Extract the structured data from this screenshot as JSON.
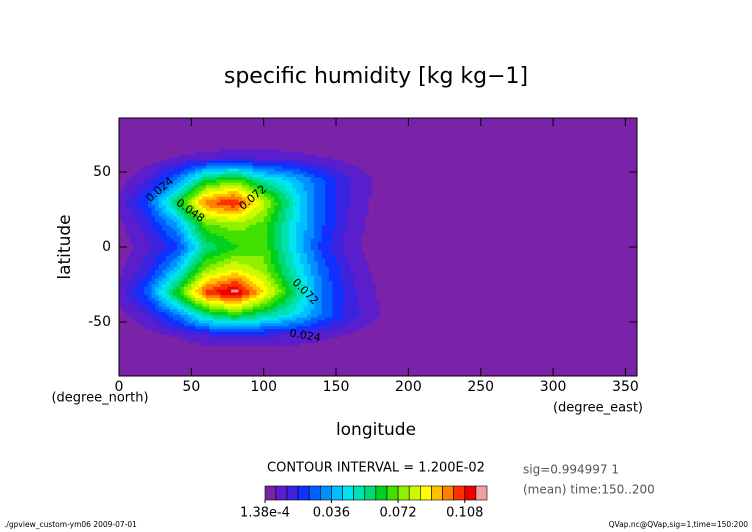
{
  "chart_data": {
    "type": "contour",
    "title": "specific humidity [kg kg−1]",
    "x_label": "longitude",
    "y_label": "latitude",
    "x_unit": "(degree_east)",
    "y_unit": "(degree_north)",
    "contour_interval": "CONTOUR INTERVAL = 1.200E-02",
    "info": [
      "sig=0.994997 1",
      "(mean) time:150..200"
    ],
    "footer_left": "./gpview_custom-ym06  2009-07-01",
    "footer_right": "QVap.nc@QVap,sig=1,time=150:200",
    "xlim": [
      0,
      358
    ],
    "ylim": [
      -86,
      86
    ],
    "xticks": [
      0,
      50,
      100,
      150,
      200,
      250,
      300,
      350
    ],
    "yticks": [
      -50,
      0,
      50
    ],
    "x": [
      0,
      20,
      40,
      60,
      80,
      100,
      120,
      140,
      160,
      180,
      200,
      220,
      240,
      260,
      280,
      300,
      320,
      340,
      360
    ],
    "y": [
      -90,
      -75,
      -60,
      -45,
      -30,
      -15,
      0,
      15,
      30,
      45,
      60,
      75,
      90
    ],
    "values": [
      [
        0.0002,
        0.0002,
        0.0002,
        0.0002,
        0.0002,
        0.0002,
        0.0002,
        0.0002,
        0.0002,
        0.0002,
        0.0002,
        0.0002,
        0.0002,
        0.0002,
        0.0002,
        0.0002,
        0.0002,
        0.0002,
        0.0002
      ],
      [
        0.0002,
        0.0002,
        0.0005,
        0.0005,
        0.0005,
        0.0005,
        0.0005,
        0.0005,
        0.0002,
        0.0002,
        0.0002,
        0.0002,
        0.0002,
        0.0002,
        0.0002,
        0.0002,
        0.0002,
        0.0002,
        0.0002
      ],
      [
        0.0003,
        0.002,
        0.006,
        0.009,
        0.01,
        0.01,
        0.009,
        0.007,
        0.004,
        0.001,
        0.0002,
        0.0002,
        0.0002,
        0.0002,
        0.0002,
        0.0002,
        0.0002,
        0.0002,
        0.0002
      ],
      [
        0.003,
        0.012,
        0.03,
        0.055,
        0.065,
        0.055,
        0.045,
        0.03,
        0.015,
        0.006,
        0.0005,
        0.0002,
        0.0002,
        0.0002,
        0.0002,
        0.0002,
        0.0002,
        0.0002,
        0.0002
      ],
      [
        0.008,
        0.028,
        0.065,
        0.105,
        0.118,
        0.09,
        0.06,
        0.03,
        0.014,
        0.005,
        0.0005,
        0.0002,
        0.0002,
        0.0002,
        0.0002,
        0.0002,
        0.0002,
        0.0002,
        0.0002
      ],
      [
        0.004,
        0.016,
        0.04,
        0.075,
        0.085,
        0.075,
        0.05,
        0.028,
        0.012,
        0.003,
        0.0003,
        0.0002,
        0.0002,
        0.0002,
        0.0002,
        0.0002,
        0.0002,
        0.0002,
        0.0002
      ],
      [
        0.002,
        0.01,
        0.022,
        0.055,
        0.065,
        0.07,
        0.045,
        0.022,
        0.008,
        0.0015,
        0.0003,
        0.0002,
        0.0002,
        0.0002,
        0.0002,
        0.0002,
        0.0002,
        0.0002,
        0.0002
      ],
      [
        0.004,
        0.015,
        0.035,
        0.07,
        0.075,
        0.07,
        0.045,
        0.025,
        0.01,
        0.002,
        0.0003,
        0.0002,
        0.0002,
        0.0002,
        0.0002,
        0.0002,
        0.0002,
        0.0002,
        0.0002
      ],
      [
        0.008,
        0.025,
        0.06,
        0.1,
        0.11,
        0.08,
        0.05,
        0.025,
        0.012,
        0.003,
        0.0005,
        0.0002,
        0.0002,
        0.0002,
        0.0002,
        0.0002,
        0.0002,
        0.0002,
        0.0002
      ],
      [
        0.003,
        0.012,
        0.03,
        0.06,
        0.07,
        0.05,
        0.04,
        0.025,
        0.012,
        0.004,
        0.0005,
        0.0002,
        0.0002,
        0.0002,
        0.0002,
        0.0002,
        0.0002,
        0.0002,
        0.0002
      ],
      [
        0.0003,
        0.002,
        0.006,
        0.008,
        0.009,
        0.009,
        0.008,
        0.006,
        0.003,
        0.001,
        0.0002,
        0.0002,
        0.0002,
        0.0002,
        0.0002,
        0.0002,
        0.0002,
        0.0002,
        0.0002
      ],
      [
        0.0002,
        0.0002,
        0.0005,
        0.0005,
        0.0005,
        0.0005,
        0.0005,
        0.0005,
        0.0002,
        0.0002,
        0.0002,
        0.0002,
        0.0002,
        0.0002,
        0.0002,
        0.0002,
        0.0002,
        0.0002,
        0.0002
      ],
      [
        0.0002,
        0.0002,
        0.0002,
        0.0002,
        0.0002,
        0.0002,
        0.0002,
        0.0002,
        0.0002,
        0.0002,
        0.0002,
        0.0002,
        0.0002,
        0.0002,
        0.0002,
        0.0002,
        0.0002,
        0.0002,
        0.0002
      ]
    ],
    "levels": [
      0.000138,
      0.006,
      0.012,
      0.018,
      0.024,
      0.03,
      0.036,
      0.042,
      0.048,
      0.054,
      0.06,
      0.066,
      0.072,
      0.078,
      0.084,
      0.09,
      0.096,
      0.102,
      0.108,
      0.114,
      0.12
    ],
    "colors": [
      "#7a22a8",
      "#5a1ecc",
      "#3a24e0",
      "#1030ff",
      "#0060ff",
      "#0090ff",
      "#00c0ff",
      "#00e6f0",
      "#00e0b0",
      "#00d870",
      "#00d020",
      "#40e000",
      "#90f000",
      "#d0f800",
      "#ffff00",
      "#ffc000",
      "#ff8000",
      "#ff3000",
      "#ee0000",
      "#f0a0a0"
    ],
    "colorbar_ticks": [
      {
        "value": 0.000138,
        "label": "1.38e-4"
      },
      0.036,
      0.072,
      0.108
    ],
    "contour_labels": [
      0.024,
      0.048,
      0.072,
      0.072,
      0.024
    ]
  }
}
